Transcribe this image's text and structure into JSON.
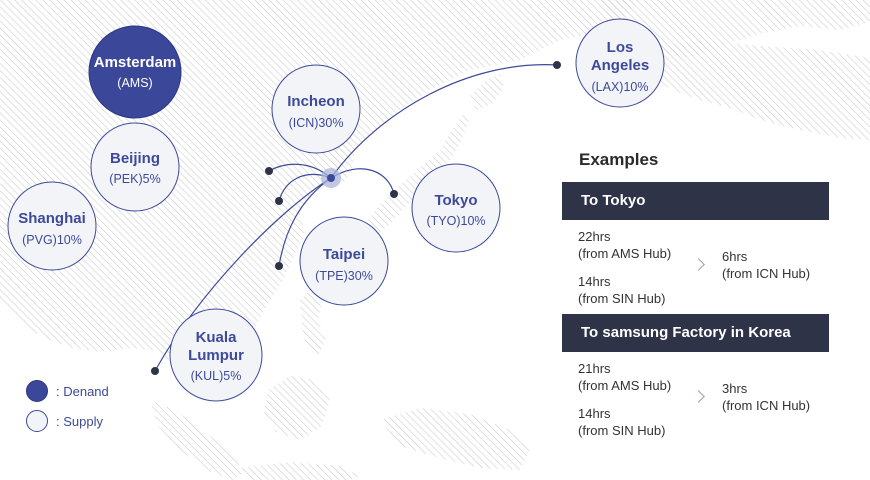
{
  "hubs": {
    "ams": {
      "name": "Amsterdam",
      "sub": "(AMS)",
      "type": "demand"
    },
    "pek": {
      "name": "Beijing",
      "sub": "(PEK)5%",
      "type": "supply"
    },
    "pvg": {
      "name": "Shanghai",
      "sub": "(PVG)10%",
      "type": "supply"
    },
    "icn": {
      "name": "Incheon",
      "sub": "(ICN)30%",
      "type": "supply"
    },
    "lax": {
      "name_line1": "Los",
      "name_line2": "Angeles",
      "sub": "(LAX)10%",
      "type": "supply"
    },
    "tyo": {
      "name": "Tokyo",
      "sub": "(TYO)10%",
      "type": "supply"
    },
    "tpe": {
      "name": "Taipei",
      "sub": "(TPE)30%",
      "type": "supply"
    },
    "kul": {
      "name_line1": "Kuala",
      "name_line2": "Lumpur",
      "sub": "(KUL)5%",
      "type": "supply"
    }
  },
  "legend": {
    "demand": ": Denand",
    "supply": ": Supply"
  },
  "colors": {
    "demand_fill": "#3b4799",
    "supply_fill": "#f3f4f8",
    "accent": "#3d4a9a",
    "route_line": "#3d4a9a",
    "header_bg": "#2e3347",
    "land_hatch": "#c9c9c9"
  },
  "examples": {
    "title": "Examples",
    "blocks": [
      {
        "header": "To Tokyo",
        "left": [
          {
            "time": "22hrs",
            "from": "(from AMS Hub)"
          },
          {
            "time": "14hrs",
            "from": "(from SIN Hub)"
          }
        ],
        "right": {
          "time": "6hrs",
          "from": "(from ICN Hub)"
        }
      },
      {
        "header": "To samsung Factory in Korea",
        "left": [
          {
            "time": "21hrs",
            "from": "(from AMS Hub)"
          },
          {
            "time": "14hrs",
            "from": "(from SIN Hub)"
          }
        ],
        "right": {
          "time": "3hrs",
          "from": "(from ICN Hub)"
        }
      }
    ]
  }
}
